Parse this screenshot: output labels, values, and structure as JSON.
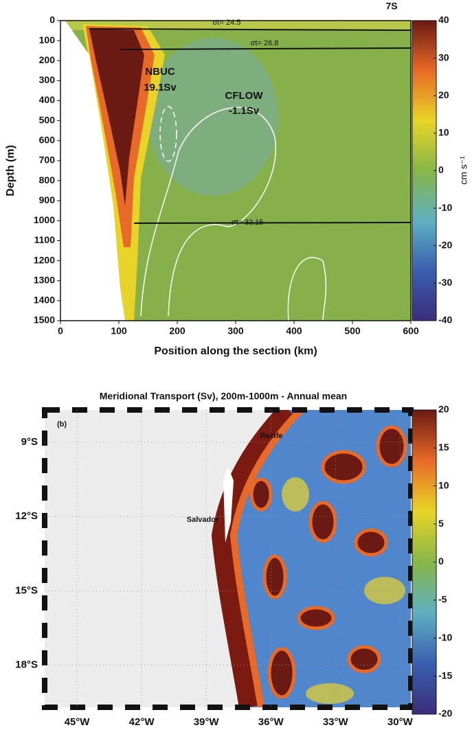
{
  "chart_data": [
    {
      "type": "contour",
      "title": "7S",
      "xlabel": "Position along the section (km)",
      "ylabel": "Depth (m)",
      "xlim": [
        0,
        600
      ],
      "xticks": [
        0,
        100,
        200,
        300,
        400,
        500,
        600
      ],
      "ylim": [
        1500,
        0
      ],
      "yticks": [
        0,
        100,
        200,
        300,
        400,
        500,
        600,
        700,
        800,
        900,
        1000,
        1100,
        1200,
        1300,
        1400,
        1500
      ],
      "colorbar": {
        "lim": [
          -40,
          40
        ],
        "ticks": [
          40,
          30,
          20,
          10,
          0,
          -10,
          -20,
          -30,
          -40
        ],
        "label": "cm s⁻¹"
      },
      "colormap": [
        "#3a2d7a",
        "#3a5fb0",
        "#5fb0c0",
        "#88b648",
        "#e8d428",
        "#e86a28",
        "#6a1a12"
      ],
      "annotations": [
        "σt= 24.5",
        "σt= 26.8",
        "σt= 32.15",
        "NBUC",
        "19.1Sv",
        "CFLOW",
        "-1.1Sv"
      ]
    },
    {
      "type": "map",
      "title": "Meridional Transport (Sv), 200m-1000m - Annual mean",
      "xlim": [
        -46.5,
        -29.5
      ],
      "xticks": [
        {
          "value": -45,
          "label": "45°W"
        },
        {
          "value": -42,
          "label": "42°W"
        },
        {
          "value": -39,
          "label": "39°W"
        },
        {
          "value": -36,
          "label": "36°W"
        },
        {
          "value": -33,
          "label": "33°W"
        },
        {
          "value": -30,
          "label": "30°W"
        }
      ],
      "ylim": [
        -19.7,
        -7.7
      ],
      "yticks": [
        {
          "value": -9,
          "label": "9°S"
        },
        {
          "value": -12,
          "label": "12°S"
        },
        {
          "value": -15,
          "label": "15°S"
        },
        {
          "value": -18,
          "label": "18°S"
        }
      ],
      "colorbar": {
        "lim": [
          -20,
          20
        ],
        "ticks": [
          20,
          15,
          10,
          5,
          0,
          -5,
          -10,
          -15,
          -20
        ]
      },
      "colormap": [
        "#3a2d7a",
        "#3a5fb0",
        "#5fb0c0",
        "#88b648",
        "#e8d428",
        "#e86a28",
        "#6a1a12"
      ],
      "annotations": [
        "(b)",
        "Recife",
        "Salvador"
      ]
    }
  ]
}
